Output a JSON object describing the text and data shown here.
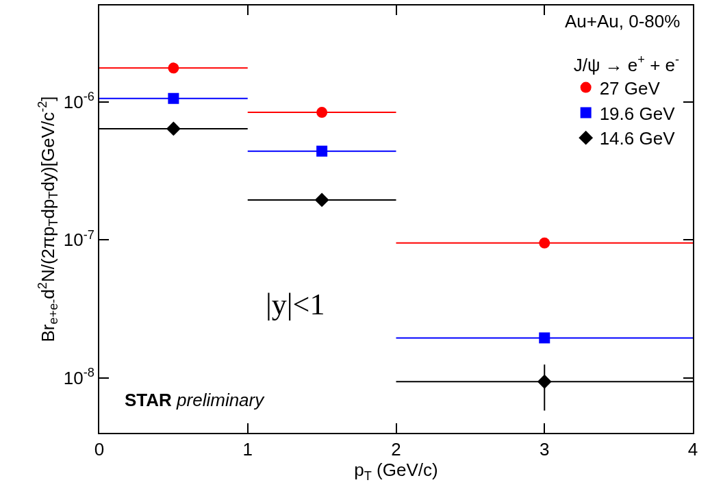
{
  "chart_data": {
    "type": "scatter",
    "xlabel": "p$_{T}$ (GeV/c)",
    "ylabel": "Br$_{e+e-}$d$^{2}$N/(2πp$_{T}$dp$_{T}$dy)[GeV/c$^{-2}$]",
    "legend_title": "J/ψ → e$^{+}$ + e$^{-}$",
    "annotations": [
      "Au+Au, 0-80%",
      "|y|<1",
      "STAR preliminary"
    ],
    "x": [
      0.5,
      1.5,
      3
    ],
    "series": [
      {
        "name": "27 GeV",
        "color": "#ff0000",
        "marker": "circle",
        "values": [
          1.76e-06,
          8.4e-07,
          9.5e-08
        ],
        "xerrors": [
          0.5,
          0.5,
          1
        ]
      },
      {
        "name": "19.6 GeV",
        "color": "#0000ff",
        "marker": "square",
        "values": [
          1.06e-06,
          4.4e-07,
          1.95e-08
        ],
        "xerrors": [
          0.5,
          0.5,
          1
        ]
      },
      {
        "name": "14.6 GeV",
        "color": "#000000",
        "marker": "diamond",
        "values": [
          6.4e-07,
          1.95e-07,
          9.4e-09
        ],
        "xerrors": [
          0.5,
          0.5,
          1
        ],
        "errors": [
          null,
          null,
          [
            5.8e-09,
            1.25e-08
          ]
        ]
      }
    ],
    "log": "y",
    "xlim": [
      0,
      4
    ],
    "ylim": [
      4e-09,
      5e-06
    ],
    "xticks": [
      0,
      1,
      2,
      3,
      4
    ],
    "yticks": [
      {
        "value": 1e-08,
        "label": "10$^{-8}$"
      },
      {
        "value": 1e-07,
        "label": "10$^{-7}$"
      },
      {
        "value": 1e-06,
        "label": "10$^{-6}$"
      }
    ],
    "grid": false,
    "legend": "top right"
  }
}
